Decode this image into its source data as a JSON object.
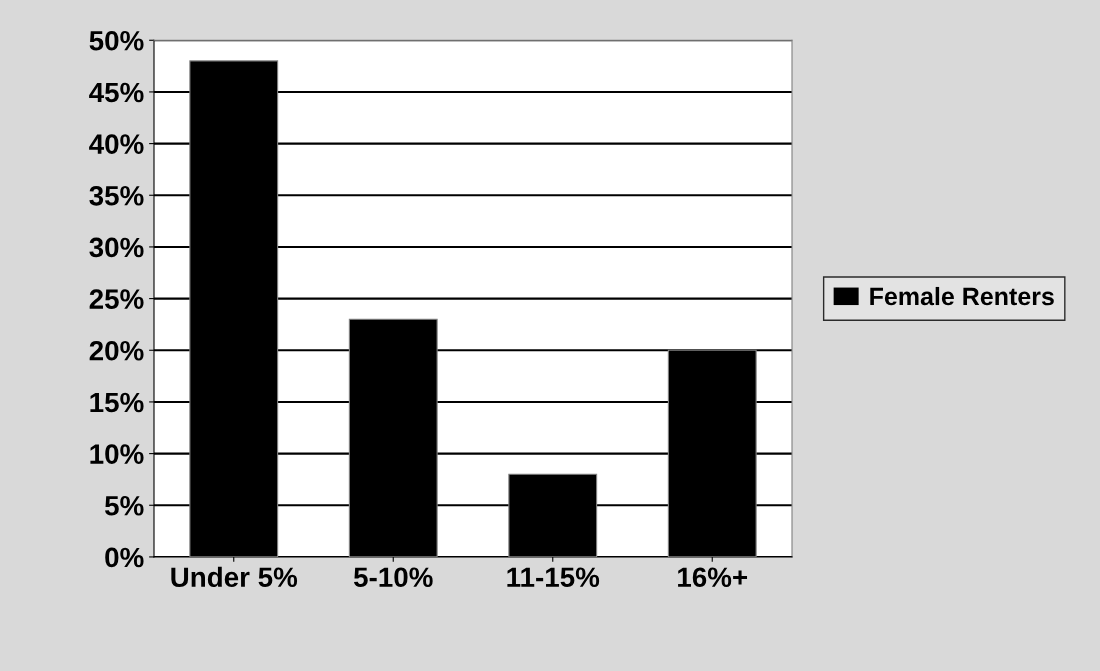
{
  "chart_data": {
    "type": "bar",
    "categories": [
      "Under 5%",
      "5-10%",
      "11-15%",
      "16%+"
    ],
    "series": [
      {
        "name": "Female Renters",
        "color": "#000000",
        "values": [
          48,
          23,
          8,
          20
        ]
      }
    ],
    "ylim": [
      0,
      50
    ],
    "yticks": [
      {
        "value": 0,
        "label": "0%"
      },
      {
        "value": 5,
        "label": "5%"
      },
      {
        "value": 10,
        "label": "10%"
      },
      {
        "value": 15,
        "label": "15%"
      },
      {
        "value": 20,
        "label": "20%"
      },
      {
        "value": 25,
        "label": "25%"
      },
      {
        "value": 30,
        "label": "30%"
      },
      {
        "value": 35,
        "label": "35%"
      },
      {
        "value": 40,
        "label": "40%"
      },
      {
        "value": 45,
        "label": "45%"
      },
      {
        "value": 50,
        "label": "50%"
      }
    ],
    "grid": "y",
    "legend": "right"
  }
}
